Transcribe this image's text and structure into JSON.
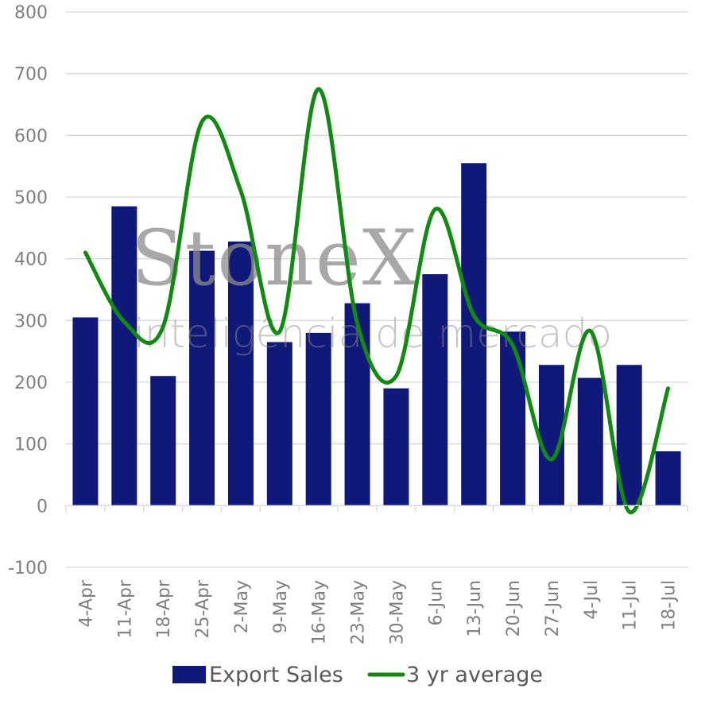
{
  "chart_data": {
    "type": "bar",
    "categories": [
      "4-Apr",
      "11-Apr",
      "18-Apr",
      "25-Apr",
      "2-May",
      "9-May",
      "16-May",
      "23-May",
      "30-May",
      "6-Jun",
      "13-Jun",
      "20-Jun",
      "27-Jun",
      "4-Jul",
      "11-Jul",
      "18-Jul"
    ],
    "series": [
      {
        "name": "Export Sales",
        "type": "bar",
        "color": "#10197a",
        "values": [
          305,
          485,
          210,
          413,
          428,
          265,
          280,
          328,
          190,
          375,
          555,
          282,
          228,
          207,
          228,
          88
        ]
      },
      {
        "name": "3 yr average",
        "type": "line",
        "color": "#118a11",
        "values": [
          410,
          298,
          290,
          622,
          510,
          282,
          675,
          295,
          210,
          480,
          308,
          260,
          75,
          283,
          -10,
          190
        ]
      }
    ],
    "ylim": [
      -100,
      800
    ],
    "yticks": [
      -100,
      0,
      100,
      200,
      300,
      400,
      500,
      600,
      700,
      800
    ],
    "grid": true,
    "legend": "bottom"
  },
  "watermark": {
    "brand": "StoneX",
    "tagline": "inteligência de mercado"
  }
}
